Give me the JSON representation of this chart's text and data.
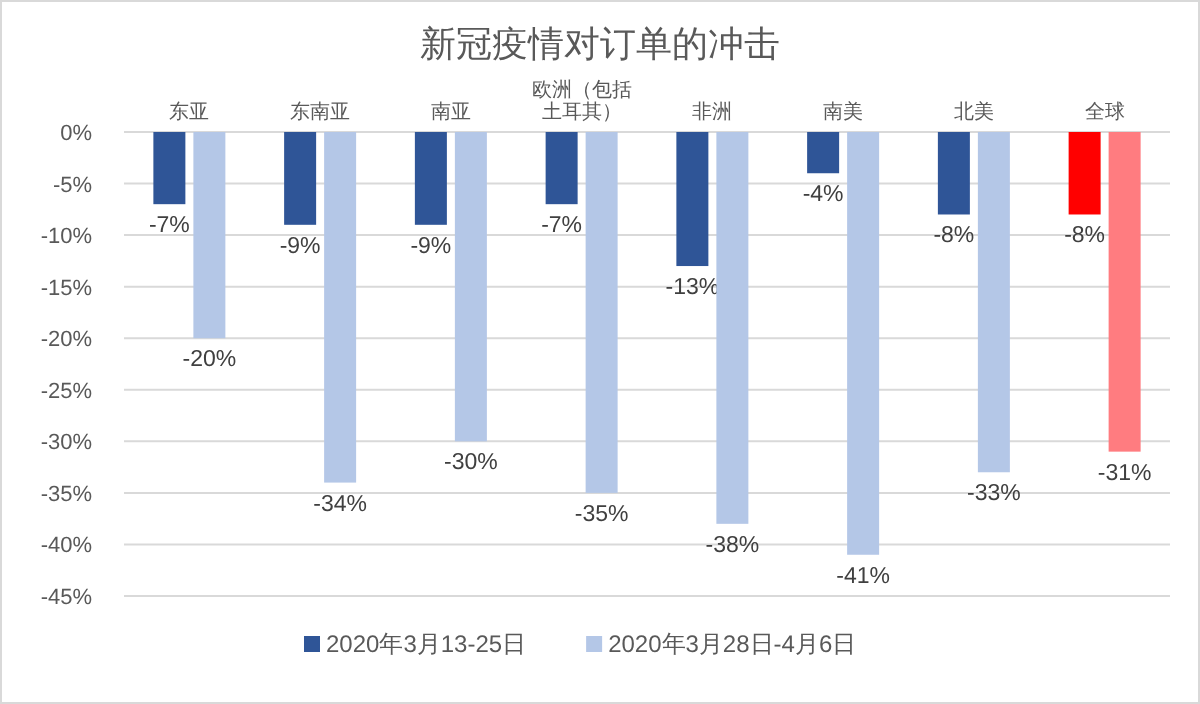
{
  "chart_data": {
    "type": "bar",
    "title": "新冠疫情对订单的冲击",
    "categories": [
      "东亚",
      "东南亚",
      "南亚",
      "欧洲（包括土耳其）",
      "非洲",
      "南美",
      "北美",
      "全球"
    ],
    "series": [
      {
        "name": "2020年3月13-25日",
        "color": "#2f5597",
        "colors": [
          "#2f5597",
          "#2f5597",
          "#2f5597",
          "#2f5597",
          "#2f5597",
          "#2f5597",
          "#2f5597",
          "#ff0000"
        ],
        "values": [
          -7,
          -9,
          -9,
          -7,
          -13,
          -4,
          -8,
          -8
        ],
        "value_labels": [
          "-7%",
          "-9%",
          "-9%",
          "-7%",
          "-13%",
          "-4%",
          "-8%",
          "-8%"
        ]
      },
      {
        "name": "2020年3月28日-4月6日",
        "color": "#b4c7e7",
        "colors": [
          "#b4c7e7",
          "#b4c7e7",
          "#b4c7e7",
          "#b4c7e7",
          "#b4c7e7",
          "#b4c7e7",
          "#b4c7e7",
          "#ff7c80"
        ],
        "values": [
          -20,
          -34,
          -30,
          -35,
          -38,
          -41,
          -33,
          -31
        ],
        "value_labels": [
          "-20%",
          "-34%",
          "-30%",
          "-35%",
          "-38%",
          "-41%",
          "-33%",
          "-31%"
        ]
      }
    ],
    "ylim": [
      -45,
      0
    ],
    "yticks": [
      {
        "value": 0,
        "label": "0%"
      },
      {
        "value": -5,
        "label": "-5%"
      },
      {
        "value": -10,
        "label": "-10%"
      },
      {
        "value": -15,
        "label": "-15%"
      },
      {
        "value": -20,
        "label": "-20%"
      },
      {
        "value": -25,
        "label": "-25%"
      },
      {
        "value": -30,
        "label": "-30%"
      },
      {
        "value": -35,
        "label": "-35%"
      },
      {
        "value": -40,
        "label": "-40%"
      },
      {
        "value": -45,
        "label": "-45%"
      }
    ],
    "grid": "y",
    "legend": "bottom"
  }
}
